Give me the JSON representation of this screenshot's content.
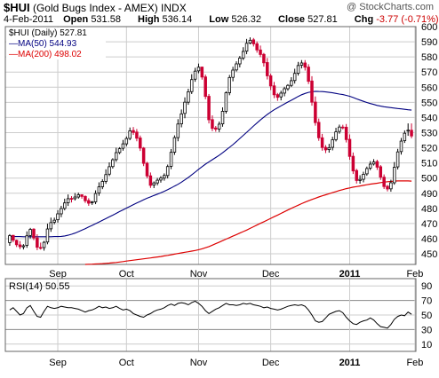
{
  "header": {
    "symbol": "$HUI",
    "name": "(Gold Bugs Index - AMEX)",
    "exchange": "INDX",
    "brand": "@ StockCharts.com",
    "date": "4-Feb-2011",
    "open_label": "Open",
    "open": "531.58",
    "high_label": "High",
    "high": "536.14",
    "low_label": "Low",
    "low": "526.32",
    "close_label": "Close",
    "close": "527.81",
    "chg_label": "Chg",
    "chg": "-3.77 (-0.71%)"
  },
  "legend": {
    "price": "$HUI (Daily) 527.81",
    "ma50": "MA(50) 544.93",
    "ma200": "MA(200) 498.02"
  },
  "rsi_label": "RSI(14) 50.55",
  "colors": {
    "up": "#000000",
    "down": "#cc0033",
    "ma50": "#000080",
    "ma200": "#dd0000",
    "grid": "#cccccc",
    "rsi": "#000000"
  },
  "chart_data": [
    {
      "type": "candlestick",
      "title": "$HUI (Daily) 527.81",
      "ylim": [
        443,
        600
      ],
      "y_ticks": [
        450,
        460,
        470,
        480,
        490,
        500,
        510,
        520,
        530,
        540,
        550,
        560,
        570,
        580,
        590,
        600
      ],
      "x_ticks": [
        {
          "label": "Sep",
          "index": 14,
          "bold": false
        },
        {
          "label": "Oct",
          "index": 34,
          "bold": false
        },
        {
          "label": "Nov",
          "index": 55,
          "bold": false
        },
        {
          "label": "Dec",
          "index": 76,
          "bold": false
        },
        {
          "label": "2011",
          "index": 99,
          "bold": true
        },
        {
          "label": "Feb",
          "index": 118,
          "bold": false
        }
      ],
      "close": [
        462.0,
        459.0,
        456.0,
        454.7,
        455.3,
        461.9,
        466.1,
        460.5,
        454.3,
        453.9,
        457.6,
        466.4,
        470.6,
        472.2,
        476.4,
        479.9,
        483.6,
        486.4,
        486.2,
        487.5,
        489.0,
        487.9,
        485.0,
        483.4,
        484.3,
        489.8,
        494.2,
        497.8,
        502.3,
        507.5,
        512.1,
        516.8,
        519.4,
        522.6,
        526.1,
        531.2,
        530.1,
        526.3,
        519.8,
        509.7,
        501.4,
        495.2,
        496.8,
        498.6,
        500.0,
        501.7,
        507.6,
        517.0,
        526.7,
        535.7,
        542.4,
        550.1,
        557.0,
        565.0,
        570.6,
        573.2,
        566.7,
        553.9,
        538.5,
        532.8,
        532.3,
        535.6,
        544.1,
        556.3,
        566.4,
        571.3,
        575.4,
        579.2,
        583.6,
        589.0,
        591.0,
        588.6,
        584.6,
        581.6,
        576.1,
        567.5,
        560.8,
        555.0,
        553.3,
        556.1,
        559.0,
        561.2,
        564.3,
        569.1,
        574.3,
        576.0,
        573.2,
        563.9,
        550.1,
        536.6,
        526.6,
        520.2,
        518.6,
        520.1,
        525.3,
        530.5,
        533.7,
        533.3,
        525.4,
        514.3,
        504.7,
        498.4,
        499.1,
        502.5,
        506.3,
        509.2,
        510.6,
        507.2,
        500.6,
        494.4,
        492.8,
        496.9,
        507.1,
        517.3,
        524.4,
        529.6,
        531.6,
        527.8
      ],
      "open": [
        457.4,
        462.2,
        458.9,
        455.9,
        454.6,
        455.6,
        462.1,
        466.3,
        460.5,
        454.2,
        454.1,
        457.8,
        466.5,
        470.9,
        472.5,
        476.4,
        480.0,
        483.7,
        486.6,
        486.4,
        487.5,
        489.0,
        487.9,
        485.2,
        483.7,
        484.3,
        490.1,
        494.3,
        497.8,
        502.6,
        507.6,
        512.2,
        516.9,
        519.7,
        522.6,
        526.2,
        531.4,
        530.4,
        526.5,
        519.8,
        509.8,
        501.5,
        495.4,
        496.8,
        498.7,
        500.0,
        501.7,
        507.8,
        517.1,
        526.7,
        535.8,
        542.7,
        550.1,
        557.1,
        565.3,
        570.8,
        573.3,
        566.8,
        554.0,
        538.6,
        533.1,
        532.4,
        535.8,
        544.1,
        556.4,
        566.5,
        571.4,
        575.4,
        579.3,
        583.8,
        589.1,
        591.3,
        588.7,
        584.6,
        581.7,
        576.3,
        567.5,
        560.9,
        555.1,
        553.6,
        556.1,
        559.0,
        561.2,
        564.4,
        569.2,
        574.5,
        576.0,
        573.3,
        564.1,
        550.2,
        536.8,
        526.6,
        520.3,
        518.8,
        520.3,
        525.4,
        530.8,
        533.7,
        533.6,
        525.6,
        514.4,
        505.0,
        498.4,
        499.2,
        502.8,
        506.6,
        509.3,
        510.9,
        507.5,
        500.6,
        494.6,
        492.9,
        496.9,
        507.4,
        517.5,
        524.7,
        531.6,
        531.6
      ],
      "high": [
        463.0,
        462.5,
        459.4,
        458.4,
        456.4,
        464.8,
        467.1,
        466.9,
        462.9,
        457.4,
        458.5,
        469.9,
        473.9,
        473.9,
        478.8,
        481.7,
        486.4,
        489.2,
        488.1,
        490.1,
        490.4,
        489.3,
        488.6,
        486.7,
        484.9,
        491.9,
        497.2,
        499.2,
        505.8,
        510.4,
        513.1,
        520.0,
        520.4,
        525.2,
        527.5,
        533.4,
        533.7,
        532.4,
        528.1,
        520.5,
        510.7,
        503.7,
        497.8,
        500.1,
        501.3,
        503.1,
        508.9,
        519.2,
        528.2,
        538.9,
        545.3,
        553.3,
        559.0,
        568.6,
        572.8,
        575.6,
        573.6,
        568.3,
        555.5,
        541.4,
        534.4,
        537.3,
        546.7,
        557.3,
        568.1,
        573.5,
        577.1,
        580.6,
        586.4,
        591.9,
        592.9,
        592.5,
        590.2,
        587.5,
        582.6,
        579.3,
        568.9,
        563.5,
        556.2,
        557.7,
        560.3,
        562.0,
        566.6,
        572.2,
        576.7,
        577.9,
        577.9,
        575.2,
        567.3,
        553.9,
        539.3,
        529.2,
        521.8,
        522.6,
        527.3,
        533.2,
        535.3,
        535.2,
        535.7,
        528.8,
        516.9,
        506.1,
        501.9,
        504.2,
        507.6,
        511.2,
        512.5,
        512.1,
        508.6,
        502.4,
        495.5,
        498.9,
        510.6,
        519.3,
        526.5,
        531.5,
        536.1,
        536.1
      ],
      "low": [
        455.3,
        457.6,
        454.5,
        453.1,
        452.9,
        454.0,
        460.1,
        459.0,
        452.4,
        452.8,
        452.1,
        456.3,
        464.5,
        469.5,
        470.6,
        474.2,
        478.7,
        481.6,
        483.9,
        485.2,
        486.4,
        486.4,
        483.6,
        481.7,
        482.3,
        482.8,
        488.3,
        492.7,
        496.2,
        501.3,
        506.3,
        510.8,
        515.8,
        518.1,
        521.0,
        525.0,
        528.5,
        524.3,
        517.9,
        507.9,
        499.9,
        493.5,
        493.4,
        495.2,
        497.0,
        498.3,
        499.8,
        505.9,
        515.3,
        524.3,
        533.5,
        539.5,
        548.4,
        555.5,
        563.6,
        569.2,
        565.0,
        552.1,
        536.1,
        531.0,
        530.6,
        530.4,
        533.9,
        542.6,
        554.7,
        563.9,
        570.3,
        573.1,
        577.9,
        581.8,
        588.3,
        586.9,
        582.8,
        579.9,
        573.6,
        565.1,
        558.1,
        552.8,
        551.0,
        551.3,
        554.0,
        557.7,
        560.1,
        562.4,
        567.7,
        572.4,
        571.0,
        562.1,
        547.8,
        534.6,
        524.6,
        518.1,
        516.5,
        516.8,
        518.3,
        524.2,
        529.3,
        532.2,
        523.5,
        512.1,
        502.7,
        496.4,
        496.3,
        497.2,
        501.5,
        505.2,
        508.3,
        505.4,
        498.8,
        492.8,
        491.2,
        491.0,
        495.6,
        505.7,
        515.5,
        523.2,
        527.9,
        526.3
      ]
    },
    {
      "type": "line",
      "name": "MA(50) 544.93",
      "start_index": 0,
      "values": [
        461.5,
        461.4,
        461.4,
        461.4,
        461.3,
        461.3,
        461.3,
        461.3,
        461.3,
        461.3,
        461.3,
        461.3,
        461.3,
        461.4,
        461.4,
        461.5,
        461.8,
        462.3,
        462.9,
        463.7,
        464.6,
        465.6,
        466.6,
        467.7,
        468.8,
        469.9,
        471.0,
        472.1,
        473.2,
        474.4,
        475.5,
        476.7,
        477.9,
        479.0,
        480.2,
        481.3,
        482.5,
        483.6,
        484.6,
        485.7,
        486.7,
        487.6,
        488.5,
        489.4,
        490.3,
        491.3,
        492.3,
        493.5,
        494.7,
        495.9,
        497.3,
        498.8,
        500.4,
        502.1,
        503.9,
        505.8,
        507.5,
        509.2,
        510.7,
        512.1,
        513.6,
        515.1,
        516.7,
        518.5,
        520.3,
        522.1,
        524.1,
        526.1,
        528.2,
        530.2,
        532.3,
        534.4,
        536.4,
        538.4,
        540.2,
        542.0,
        543.6,
        545.1,
        546.4,
        547.7,
        549.0,
        550.2,
        551.4,
        552.6,
        553.9,
        555.0,
        555.9,
        556.6,
        557.0,
        557.3,
        557.2,
        557.1,
        556.9,
        556.6,
        556.3,
        555.9,
        555.5,
        555.1,
        554.6,
        554.0,
        553.2,
        552.3,
        551.5,
        550.7,
        549.9,
        549.2,
        548.6,
        548.0,
        547.5,
        547.1,
        546.8,
        546.5,
        546.2,
        545.9,
        545.7,
        545.4,
        545.1,
        544.9
      ]
    },
    {
      "type": "line",
      "name": "MA(200) 498.02",
      "start_index": 22,
      "values": [
        443.0,
        443.1,
        443.2,
        443.3,
        443.4,
        443.5,
        443.7,
        443.9,
        444.1,
        444.3,
        444.6,
        444.9,
        445.2,
        445.5,
        445.8,
        446.1,
        446.4,
        446.7,
        447.0,
        447.3,
        447.6,
        447.9,
        448.2,
        448.6,
        449.0,
        449.4,
        449.8,
        450.2,
        450.6,
        451.0,
        451.4,
        451.8,
        452.2,
        452.7,
        453.3,
        454.0,
        454.8,
        455.7,
        456.7,
        457.7,
        458.7,
        459.7,
        460.7,
        461.7,
        462.7,
        463.7,
        464.7,
        465.7,
        466.8,
        467.9,
        469.0,
        470.1,
        471.2,
        472.3,
        473.4,
        474.5,
        475.6,
        476.7,
        477.8,
        478.9,
        480.0,
        481.1,
        482.1,
        483.1,
        484.1,
        485.0,
        485.9,
        486.7,
        487.5,
        488.3,
        489.0,
        489.7,
        490.4,
        491.1,
        491.8,
        492.4,
        493.0,
        493.5,
        494.0,
        494.4,
        494.8,
        495.2,
        495.6,
        496.0,
        496.3,
        496.6,
        497.0,
        497.3,
        497.6,
        497.8,
        498.0,
        498.1,
        498.1,
        498.1,
        498.1,
        498.0
      ]
    },
    {
      "type": "line",
      "title": "RSI(14) 50.55",
      "ylim": [
        0,
        100
      ],
      "y_ticks": [
        10,
        30,
        50,
        70,
        90
      ],
      "values": [
        57,
        60,
        55,
        50,
        52,
        60,
        63,
        55,
        48,
        47,
        55,
        62,
        60,
        59,
        60,
        62,
        61,
        60,
        60,
        59,
        58,
        56,
        54,
        56,
        57,
        59,
        62,
        60,
        61,
        59,
        60,
        62,
        59,
        57,
        58,
        56,
        52,
        50,
        48,
        47,
        50,
        52,
        55,
        57,
        58,
        60,
        63,
        65,
        63,
        66,
        67,
        66,
        64,
        67,
        69,
        66,
        62,
        56,
        52,
        55,
        58,
        60,
        63,
        66,
        64,
        64,
        63,
        64,
        66,
        65,
        66,
        64,
        63,
        62,
        60,
        61,
        59,
        58,
        57,
        58,
        60,
        62,
        63,
        64,
        63,
        64,
        62,
        57,
        50,
        42,
        40,
        41,
        46,
        51,
        53,
        55,
        56,
        53,
        47,
        42,
        38,
        37,
        40,
        42,
        43,
        46,
        43,
        38,
        34,
        33,
        32,
        37,
        44,
        48,
        50,
        49,
        54,
        51
      ]
    }
  ]
}
